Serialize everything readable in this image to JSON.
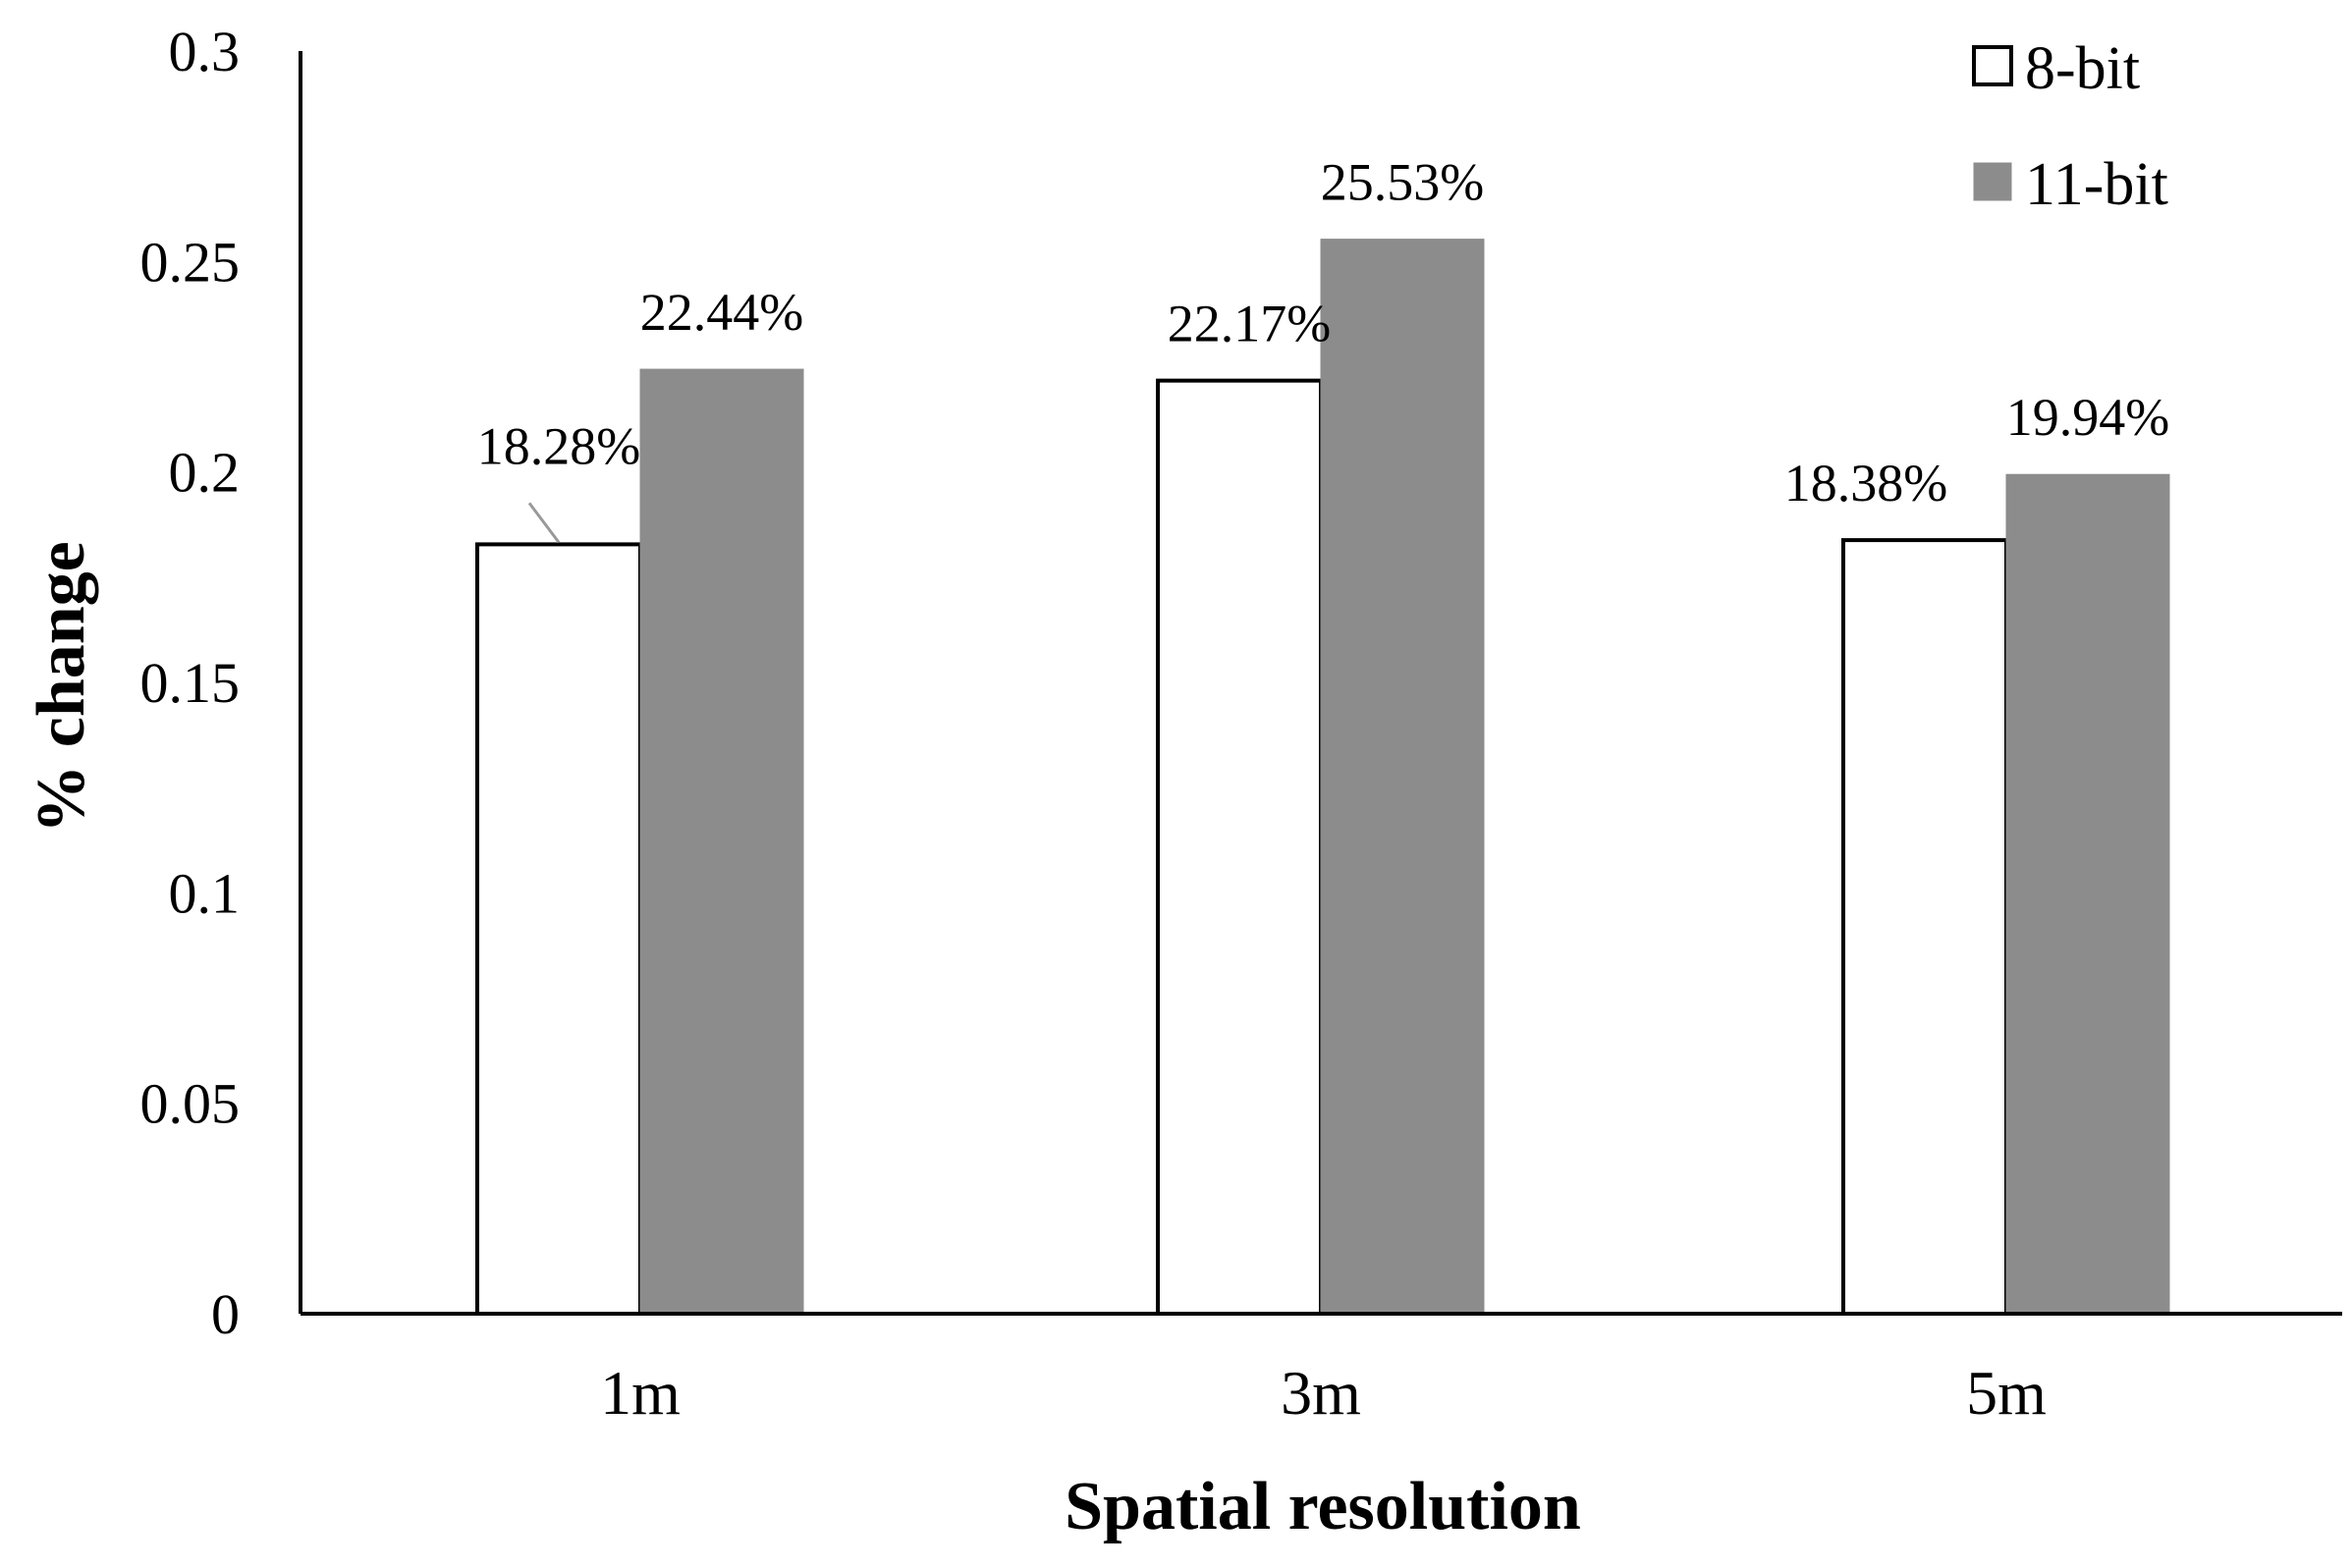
{
  "chart_data": {
    "type": "bar",
    "categories": [
      "1m",
      "3m",
      "5m"
    ],
    "series": [
      {
        "name": "8-bit",
        "values": [
          0.1828,
          0.2217,
          0.1838
        ],
        "labels": [
          "18.28%",
          "22.17%",
          "18.38%"
        ],
        "fill": "#ffffff",
        "stroke": "#000000"
      },
      {
        "name": "11-bit",
        "values": [
          0.2244,
          0.2553,
          0.1994
        ],
        "labels": [
          "22.44%",
          "25.53%",
          "19.94%"
        ],
        "fill": "#8c8c8c",
        "stroke": "#8c8c8c"
      }
    ],
    "yticks": [
      "0",
      "0.05",
      "0.1",
      "0.15",
      "0.2",
      "0.25",
      "0.3"
    ],
    "ylim": [
      0,
      0.3
    ],
    "xlabel": "Spatial resolution",
    "ylabel": "% change",
    "grid": false,
    "legend": "top-right"
  }
}
